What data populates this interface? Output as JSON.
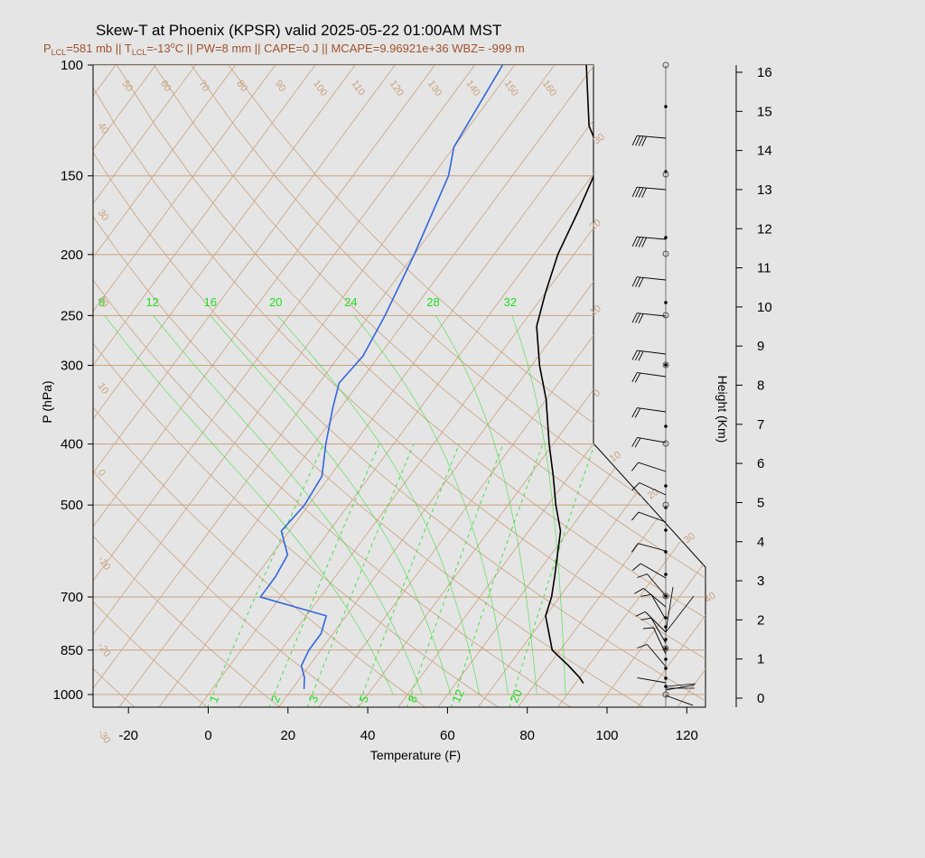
{
  "title": "Skew-T at Phoenix (KPSR) valid 2025-05-22 01:00AM MST",
  "subtitle": "P_LCL=581 mb || T_LCL=-13°C || PW=8 mm || CAPE=0 J || MCAPE=9.96921e+36 WBZ= -999 m",
  "subtitle_parts": {
    "p_lcl": "581 mb",
    "t_lcl": "-13",
    "pw": "8 mm",
    "cape": "0 J",
    "mcape": "9.96921e+36",
    "wbz": "-999 m"
  },
  "colors": {
    "temperature": "#000000",
    "dewpoint": "#3366dd",
    "mixing_ratio": "#22dd22",
    "isotherm": "#c9a27e",
    "subtitle": "#a0522d"
  },
  "chart_data": {
    "type": "line",
    "title": "Skew-T at Phoenix (KPSR) valid 2025-05-22 01:00AM MST",
    "xlabel": "Temperature (F)",
    "ylabel": "P (hPa)",
    "y2label": "Height (Km)",
    "x_ticks": [
      "-20",
      "0",
      "20",
      "40",
      "60",
      "80",
      "100",
      "120"
    ],
    "p_ticks": [
      "100",
      "150",
      "200",
      "250",
      "300",
      "400",
      "500",
      "700",
      "850",
      "1000"
    ],
    "height_ticks": [
      "0",
      "1",
      "2",
      "3",
      "4",
      "5",
      "6",
      "7",
      "8",
      "9",
      "10",
      "11",
      "12",
      "13",
      "14",
      "15",
      "16"
    ],
    "isotherm_labels_top": [
      "50",
      "60",
      "70",
      "80",
      "90",
      "100",
      "110",
      "120",
      "130",
      "140",
      "150",
      "160"
    ],
    "isotherm_labels_left": [
      "40",
      "30",
      "20",
      "10",
      "0",
      "-10",
      "-20",
      "-30"
    ],
    "isotherm_labels_right": [
      "30",
      "20",
      "10",
      "0",
      "10",
      "20",
      "30",
      "40"
    ],
    "mixing_ratio_labels_top": [
      "8",
      "12",
      "16",
      "20",
      "24",
      "28",
      "32"
    ],
    "mixing_ratio_labels_bottom": [
      "1",
      "2",
      "3",
      "5",
      "8",
      "12",
      "20"
    ],
    "series": [
      {
        "name": "temperature",
        "values": [
          [
            92,
            960
          ],
          [
            90,
            940
          ],
          [
            85,
            900
          ],
          [
            78,
            850
          ],
          [
            70,
            750
          ],
          [
            68,
            700
          ],
          [
            65,
            650
          ],
          [
            58,
            550
          ],
          [
            52,
            500
          ],
          [
            46,
            450
          ],
          [
            39,
            400
          ],
          [
            30,
            340
          ],
          [
            22,
            300
          ],
          [
            14,
            260
          ],
          [
            10,
            230
          ],
          [
            6,
            200
          ],
          [
            3,
            170
          ],
          [
            -1,
            140
          ],
          [
            -10,
            125
          ],
          [
            -22,
            100
          ]
        ]
      },
      {
        "name": "dewpoint",
        "values": [
          [
            23,
            980
          ],
          [
            22,
            960
          ],
          [
            21,
            940
          ],
          [
            18,
            900
          ],
          [
            17,
            850
          ],
          [
            17,
            800
          ],
          [
            15,
            750
          ],
          [
            -5,
            700
          ],
          [
            -5,
            650
          ],
          [
            -6,
            600
          ],
          [
            -12,
            550
          ],
          [
            -11,
            500
          ],
          [
            -12,
            450
          ],
          [
            -17,
            400
          ],
          [
            -22,
            350
          ],
          [
            -25,
            320
          ],
          [
            -24,
            290
          ],
          [
            -26,
            250
          ],
          [
            -30,
            200
          ],
          [
            -36,
            150
          ],
          [
            -40,
            135
          ],
          [
            -43,
            100
          ]
        ]
      }
    ],
    "wind_profile": "barbs at right, 1000-100 hPa"
  }
}
